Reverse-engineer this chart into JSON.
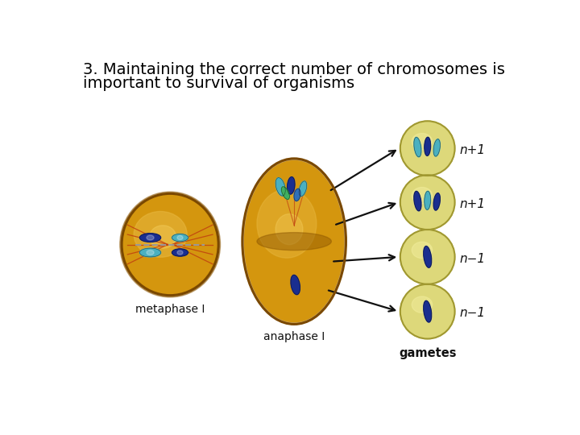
{
  "title_line1": "3. Maintaining the correct number of chromosomes is",
  "title_line2": "important to survival of organisms",
  "title_fontsize": 14,
  "bg_color": "#ffffff",
  "cell_gold_fill": "#d4960e",
  "cell_gold_light": "#e8b840",
  "cell_gold_dark": "#8b5500",
  "cell_outline": "#7a4800",
  "gamete_fill": "#ddd87a",
  "gamete_outline": "#a09830",
  "chrom_dark_blue": "#1a2e8f",
  "chrom_teal": "#4ab0c0",
  "chrom_green": "#40b060",
  "spindle_color": "#c04010",
  "dashed_color": "#999999",
  "label_metaphase": "metaphase I",
  "label_anaphase": "anaphase I",
  "label_gametes": "gametes",
  "labels_right": [
    "n+1",
    "n+1",
    "n−1",
    "n−1"
  ],
  "arrow_color": "#111111"
}
